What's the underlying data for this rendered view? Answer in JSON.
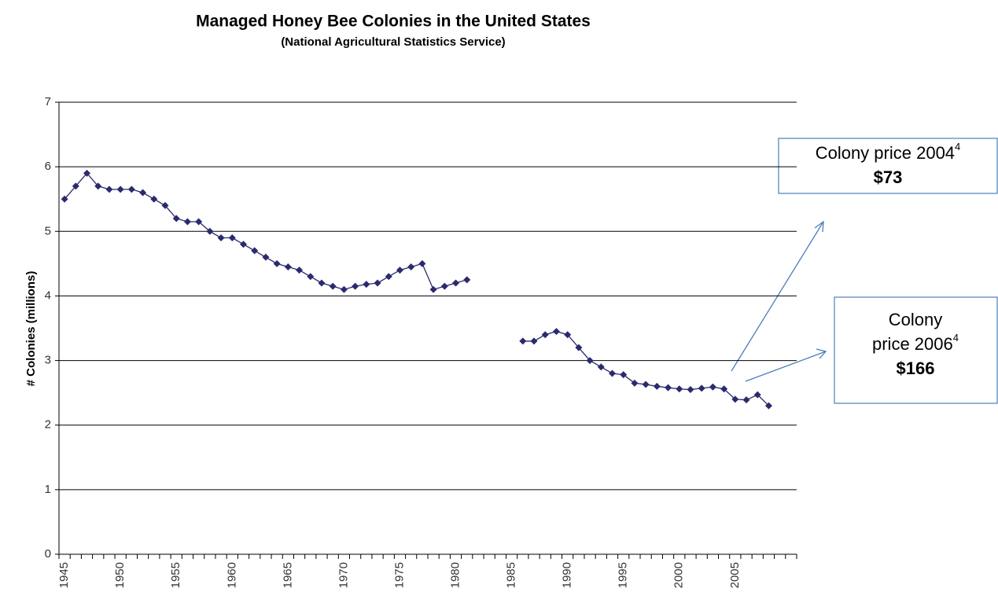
{
  "chart_data": {
    "type": "line",
    "title": "Managed Honey Bee Colonies in the United States",
    "subtitle": "(National Agricultural Statistics Service)",
    "y_label": "# Colonies (millions)",
    "categories": [
      "1945",
      null,
      null,
      null,
      null,
      "1950",
      null,
      null,
      null,
      null,
      "1955",
      null,
      null,
      null,
      null,
      "1960",
      null,
      null,
      null,
      null,
      "1965",
      null,
      null,
      null,
      null,
      "1970",
      null,
      null,
      null,
      null,
      "1975",
      null,
      null,
      null,
      null,
      "1980",
      null,
      null,
      null,
      null,
      "1985",
      null,
      null,
      null,
      null,
      "1990",
      null,
      null,
      null,
      null,
      "1995",
      null,
      null,
      null,
      null,
      "2000",
      null,
      null,
      null,
      null,
      "2005",
      null,
      null,
      null,
      null,
      null
    ],
    "series": [
      {
        "name": "Colonies",
        "color": "#2b2a6e",
        "values": [
          5.5,
          5.7,
          5.9,
          5.7,
          5.65,
          5.65,
          5.65,
          5.6,
          5.5,
          5.4,
          5.2,
          5.15,
          5.15,
          5.0,
          4.9,
          4.9,
          4.8,
          4.7,
          4.6,
          4.5,
          4.45,
          4.4,
          4.3,
          4.2,
          4.15,
          4.1,
          4.15,
          4.18,
          4.2,
          4.3,
          4.4,
          4.45,
          4.5,
          4.1,
          4.15,
          4.2,
          4.25,
          null,
          null,
          null,
          null,
          3.3,
          3.3,
          3.4,
          3.45,
          3.4,
          3.2,
          3.0,
          2.9,
          2.8,
          2.78,
          2.65,
          2.63,
          2.6,
          2.58,
          2.56,
          2.55,
          2.57,
          2.59,
          2.56,
          2.4,
          2.39,
          2.47,
          2.3,
          null,
          null
        ]
      }
    ],
    "ylim": [
      0,
      7
    ],
    "yticks": [
      0,
      1,
      2,
      3,
      4,
      5,
      6,
      7
    ],
    "grid": true,
    "annotations": [
      {
        "lines": [
          "Colony price 2004"
        ],
        "superscript": "4",
        "price": "$73"
      },
      {
        "lines": [
          "Colony",
          "price 2006"
        ],
        "superscript": "4",
        "price": "$166"
      }
    ]
  }
}
